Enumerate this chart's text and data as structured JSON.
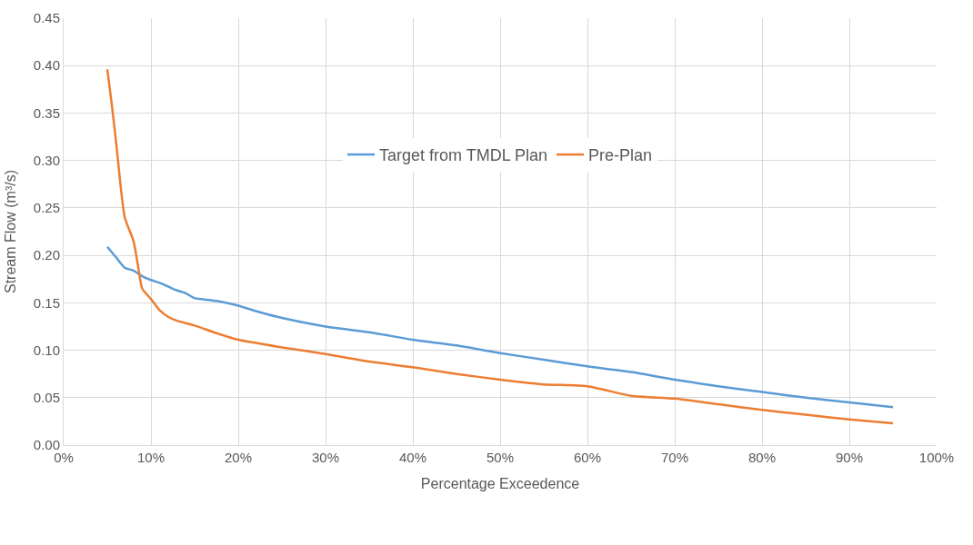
{
  "chart_data": {
    "type": "line",
    "xlabel": "Percentage Exceedence",
    "ylabel": "Stream Flow (m³/s)",
    "xlim": [
      0,
      100
    ],
    "xticks": [
      {
        "value": 0,
        "label": "0%"
      },
      {
        "value": 10,
        "label": "10%"
      },
      {
        "value": 20,
        "label": "20%"
      },
      {
        "value": 30,
        "label": "30%"
      },
      {
        "value": 40,
        "label": "40%"
      },
      {
        "value": 50,
        "label": "50%"
      },
      {
        "value": 60,
        "label": "60%"
      },
      {
        "value": 70,
        "label": "70%"
      },
      {
        "value": 80,
        "label": "80%"
      },
      {
        "value": 90,
        "label": "90%"
      },
      {
        "value": 100,
        "label": "100%"
      }
    ],
    "ylim": [
      0,
      0.45
    ],
    "yticks": [
      {
        "value": 0,
        "label": "0.00"
      },
      {
        "value": 0.05,
        "label": "0.05"
      },
      {
        "value": 0.1,
        "label": "0.10"
      },
      {
        "value": 0.15,
        "label": "0.15"
      },
      {
        "value": 0.2,
        "label": "0.20"
      },
      {
        "value": 0.25,
        "label": "0.25"
      },
      {
        "value": 0.3,
        "label": "0.30"
      },
      {
        "value": 0.35,
        "label": "0.35"
      },
      {
        "value": 0.4,
        "label": "0.40"
      },
      {
        "value": 0.45,
        "label": "0.45"
      }
    ],
    "grid": true,
    "legend": "top",
    "marker": "none",
    "line_style": "solid",
    "series": [
      {
        "name": "Target from TMDL Plan",
        "color": "#5b9bd5",
        "x": [
          5,
          6,
          7,
          8,
          9,
          10,
          11,
          12,
          13,
          14,
          15,
          17.5,
          20,
          22.5,
          25,
          30,
          35,
          40,
          45,
          50,
          55,
          60,
          65,
          70,
          75,
          80,
          85,
          90,
          95
        ],
        "values": [
          0.209,
          0.198,
          0.187,
          0.184,
          0.178,
          0.174,
          0.171,
          0.167,
          0.163,
          0.16,
          0.155,
          0.152,
          0.147,
          0.14,
          0.134,
          0.125,
          0.119,
          0.111,
          0.105,
          0.097,
          0.09,
          0.083,
          0.077,
          0.069,
          0.062,
          0.056,
          0.05,
          0.045,
          0.04
        ]
      },
      {
        "name": "Pre-Plan",
        "color": "#ed7d31",
        "x": [
          5,
          5.5,
          6,
          7,
          8,
          8.5,
          9,
          10,
          11,
          12,
          13,
          15,
          17.5,
          20,
          25,
          30,
          35,
          40,
          45,
          50,
          55,
          60,
          65,
          70,
          75,
          80,
          85,
          90,
          95
        ],
        "values": [
          0.396,
          0.36,
          0.32,
          0.24,
          0.215,
          0.19,
          0.165,
          0.154,
          0.142,
          0.135,
          0.131,
          0.126,
          0.118,
          0.111,
          0.103,
          0.096,
          0.088,
          0.082,
          0.075,
          0.069,
          0.064,
          0.062,
          0.052,
          0.049,
          0.043,
          0.037,
          0.032,
          0.027,
          0.023
        ]
      }
    ]
  }
}
